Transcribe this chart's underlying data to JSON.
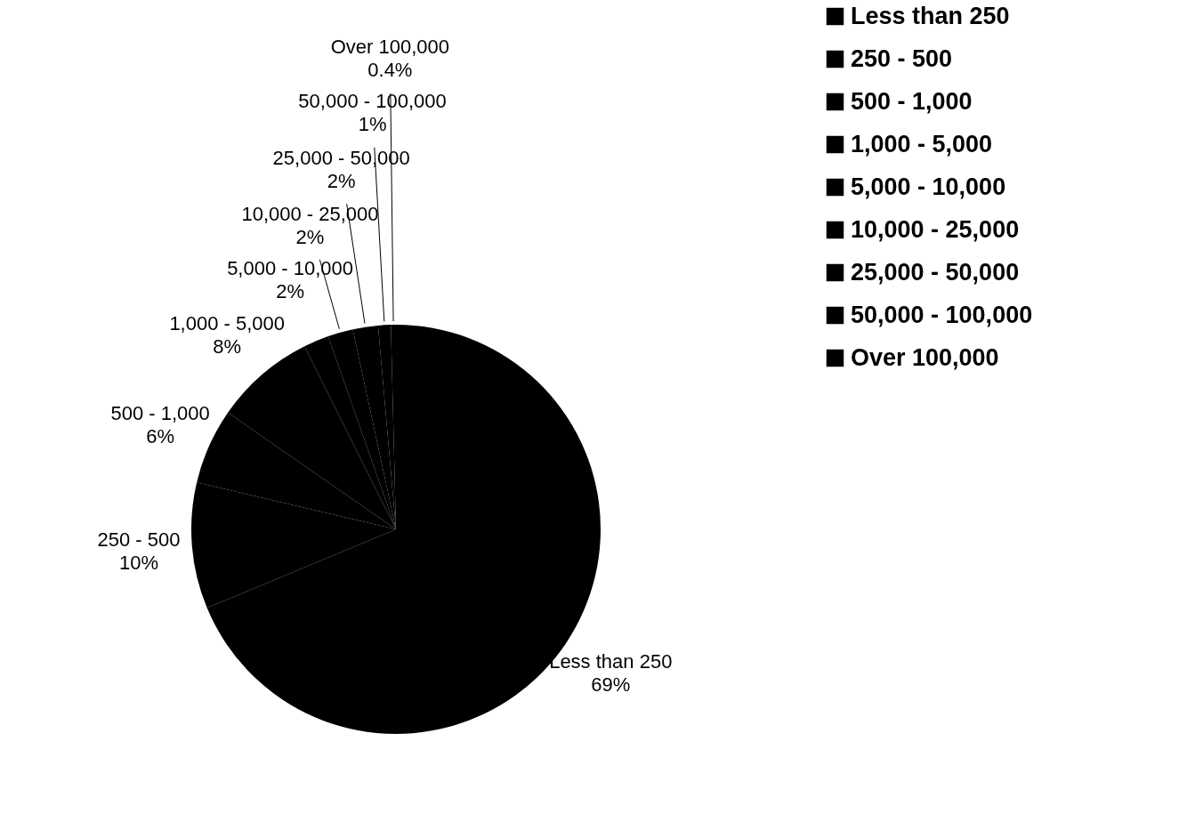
{
  "chart_data": {
    "type": "pie",
    "categories": [
      "Less than 250",
      "250 - 500",
      "500 - 1,000",
      "1,000 - 5,000",
      "5,000 - 10,000",
      "10,000 - 25,000",
      "25,000 - 50,000",
      "50,000 - 100,000",
      "Over 100,000"
    ],
    "values": [
      69,
      10,
      6,
      8,
      2,
      2,
      2,
      1,
      0.4
    ],
    "value_labels": [
      "69%",
      "10%",
      "6%",
      "8%",
      "2%",
      "2%",
      "2%",
      "1%",
      "0.4%"
    ],
    "colors": [
      "#000000",
      "#000000",
      "#000000",
      "#000000",
      "#000000",
      "#000000",
      "#000000",
      "#000000",
      "#000000"
    ],
    "legend": "right"
  }
}
